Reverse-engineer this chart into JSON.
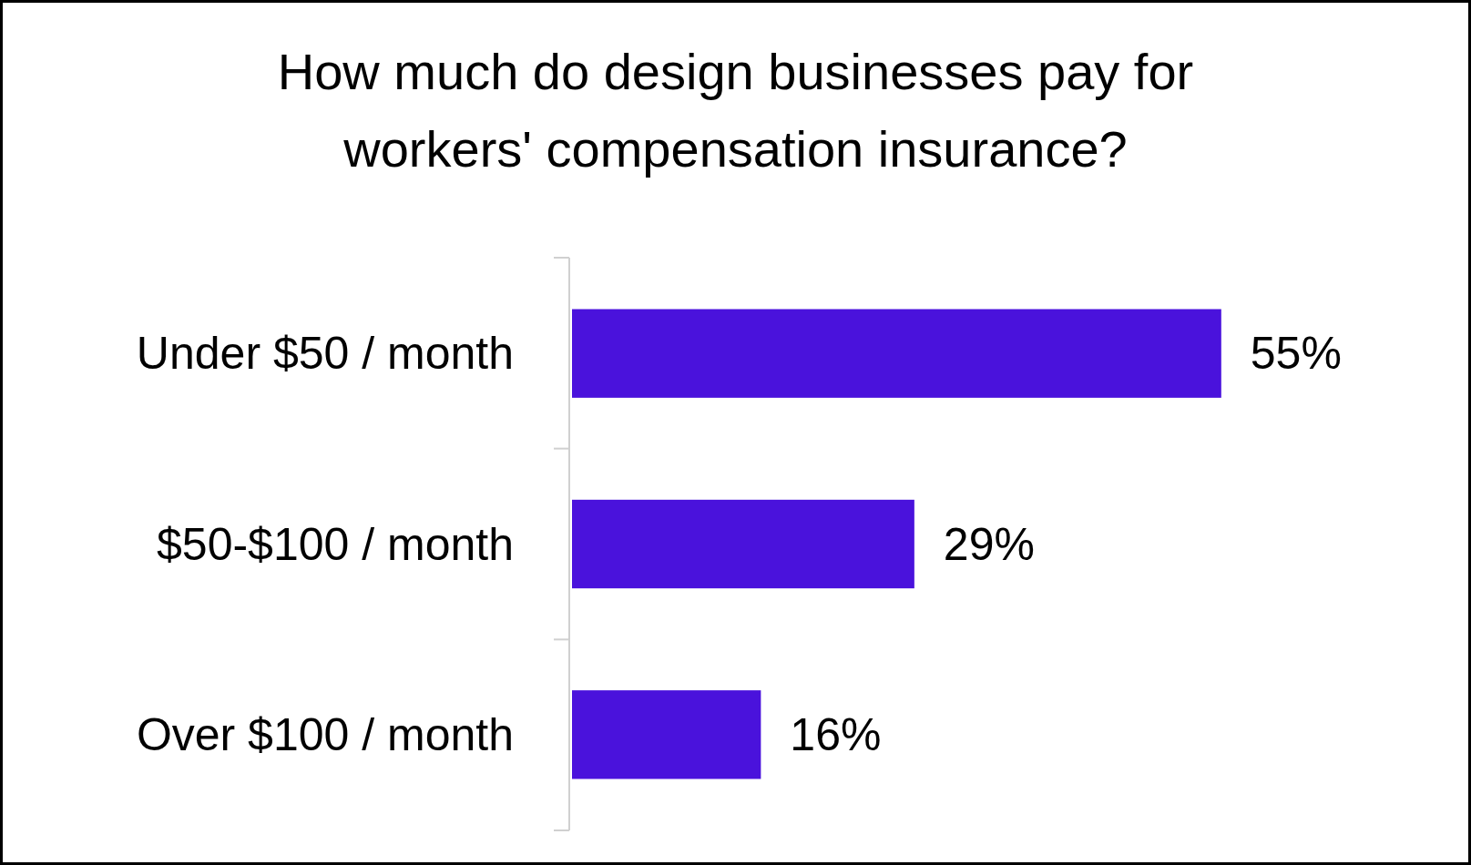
{
  "chart_data": {
    "type": "bar",
    "orientation": "horizontal",
    "title": "How much do design businesses pay for workers' compensation insurance?",
    "categories": [
      "Under $50 / month",
      "$50-$100 / month",
      "Over $100 / month"
    ],
    "values": [
      55,
      29,
      16
    ],
    "value_labels": [
      "55%",
      "29%",
      "16%"
    ],
    "color": "#4a12dc"
  }
}
